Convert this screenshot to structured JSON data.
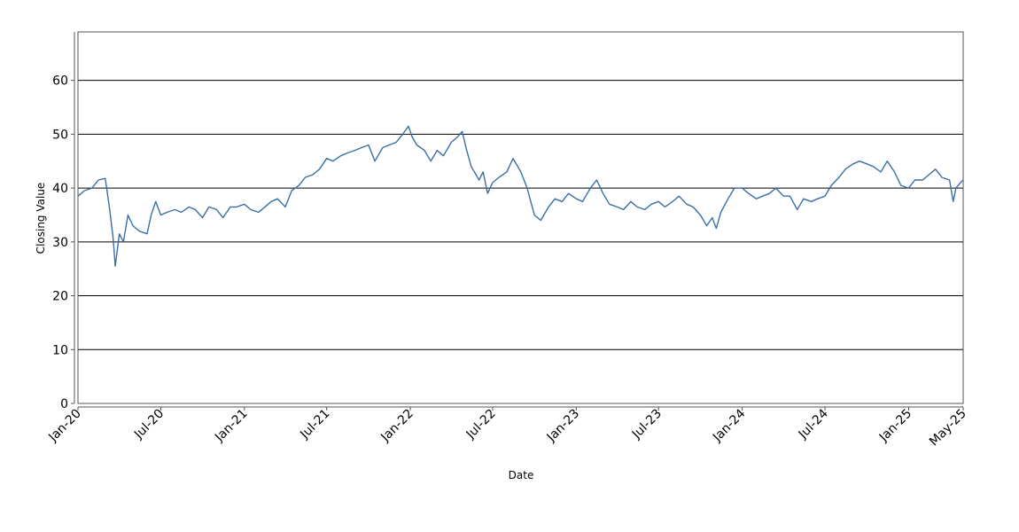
{
  "chart_data": {
    "type": "line",
    "title": "",
    "xlabel": "Date",
    "ylabel": "Closing Value",
    "ylim": [
      0,
      69
    ],
    "xlim": [
      "2020-01-01",
      "2025-05-01"
    ],
    "y_ticks": [
      0,
      10,
      20,
      30,
      40,
      50,
      60
    ],
    "x_ticks": [
      {
        "date": "2020-01-01",
        "label": "Jan-20"
      },
      {
        "date": "2020-07-01",
        "label": "Jul-20"
      },
      {
        "date": "2021-01-01",
        "label": "Jan-21"
      },
      {
        "date": "2021-07-01",
        "label": "Jul-21"
      },
      {
        "date": "2022-01-01",
        "label": "Jan-22"
      },
      {
        "date": "2022-07-01",
        "label": "Jul-22"
      },
      {
        "date": "2023-01-01",
        "label": "Jan-23"
      },
      {
        "date": "2023-07-01",
        "label": "Jul-23"
      },
      {
        "date": "2024-01-01",
        "label": "Jan-24"
      },
      {
        "date": "2024-07-01",
        "label": "Jul-24"
      },
      {
        "date": "2025-01-01",
        "label": "Jan-25"
      },
      {
        "date": "2025-05-01",
        "label": "May-25"
      }
    ],
    "grid": "horizontal",
    "line_color": "#3a6ea5",
    "series": [
      {
        "x": [
          "2020-01-01",
          "2020-01-15",
          "2020-02-01",
          "2020-02-15",
          "2020-03-01",
          "2020-03-10",
          "2020-03-18",
          "2020-03-23",
          "2020-04-01",
          "2020-04-10",
          "2020-04-20",
          "2020-05-01",
          "2020-05-15",
          "2020-06-01",
          "2020-06-10",
          "2020-06-20",
          "2020-07-01",
          "2020-07-15",
          "2020-08-01",
          "2020-08-15",
          "2020-09-01",
          "2020-09-15",
          "2020-10-01",
          "2020-10-15",
          "2020-11-01",
          "2020-11-15",
          "2020-12-01",
          "2020-12-15",
          "2021-01-01",
          "2021-01-15",
          "2021-02-01",
          "2021-02-15",
          "2021-03-01",
          "2021-03-15",
          "2021-04-01",
          "2021-04-15",
          "2021-05-01",
          "2021-05-15",
          "2021-06-01",
          "2021-06-15",
          "2021-07-01",
          "2021-07-15",
          "2021-08-01",
          "2021-08-15",
          "2021-09-01",
          "2021-09-15",
          "2021-10-01",
          "2021-10-15",
          "2021-11-01",
          "2021-11-15",
          "2021-12-01",
          "2021-12-15",
          "2021-12-28",
          "2022-01-05",
          "2022-01-15",
          "2022-02-01",
          "2022-02-15",
          "2022-03-01",
          "2022-03-15",
          "2022-04-01",
          "2022-04-15",
          "2022-04-25",
          "2022-05-05",
          "2022-05-15",
          "2022-06-01",
          "2022-06-10",
          "2022-06-20",
          "2022-07-01",
          "2022-07-15",
          "2022-08-01",
          "2022-08-15",
          "2022-09-01",
          "2022-09-15",
          "2022-10-01",
          "2022-10-15",
          "2022-11-01",
          "2022-11-15",
          "2022-12-01",
          "2022-12-15",
          "2023-01-01",
          "2023-01-15",
          "2023-02-01",
          "2023-02-15",
          "2023-03-01",
          "2023-03-15",
          "2023-04-01",
          "2023-04-15",
          "2023-05-01",
          "2023-05-15",
          "2023-06-01",
          "2023-06-15",
          "2023-07-01",
          "2023-07-15",
          "2023-08-01",
          "2023-08-15",
          "2023-09-01",
          "2023-09-15",
          "2023-10-01",
          "2023-10-15",
          "2023-10-27",
          "2023-11-05",
          "2023-11-15",
          "2023-12-01",
          "2023-12-15",
          "2024-01-01",
          "2024-01-15",
          "2024-02-01",
          "2024-02-15",
          "2024-03-01",
          "2024-03-15",
          "2024-04-01",
          "2024-04-15",
          "2024-05-01",
          "2024-05-15",
          "2024-06-01",
          "2024-06-15",
          "2024-07-01",
          "2024-07-15",
          "2024-08-01",
          "2024-08-15",
          "2024-09-01",
          "2024-09-15",
          "2024-10-01",
          "2024-10-15",
          "2024-11-01",
          "2024-11-15",
          "2024-12-01",
          "2024-12-15",
          "2025-01-01",
          "2025-01-15",
          "2025-02-01",
          "2025-02-15",
          "2025-03-01",
          "2025-03-15",
          "2025-04-01",
          "2025-04-09",
          "2025-04-15",
          "2025-04-25",
          "2025-05-01"
        ],
        "y": [
          38.5,
          39.5,
          40.0,
          41.5,
          41.8,
          36.5,
          31.0,
          25.5,
          31.5,
          30.0,
          35.0,
          33.0,
          32.0,
          31.5,
          35.0,
          37.5,
          35.0,
          35.5,
          36.0,
          35.5,
          36.5,
          36.0,
          34.5,
          36.5,
          36.0,
          34.5,
          36.5,
          36.5,
          37.0,
          36.0,
          35.5,
          36.5,
          37.5,
          38.0,
          36.5,
          39.5,
          40.5,
          42.0,
          42.5,
          43.5,
          45.5,
          45.0,
          46.0,
          46.5,
          47.0,
          47.5,
          48.0,
          45.0,
          47.5,
          48.0,
          48.5,
          50.0,
          51.5,
          49.5,
          48.0,
          47.0,
          45.0,
          47.0,
          46.0,
          48.5,
          49.5,
          50.5,
          47.0,
          44.0,
          41.5,
          43.0,
          39.0,
          41.0,
          42.0,
          43.0,
          45.5,
          43.0,
          40.0,
          35.0,
          34.0,
          36.5,
          38.0,
          37.5,
          39.0,
          38.0,
          37.5,
          40.0,
          41.5,
          39.0,
          37.0,
          36.5,
          36.0,
          37.5,
          36.5,
          36.0,
          37.0,
          37.5,
          36.5,
          37.5,
          38.5,
          37.0,
          36.5,
          35.0,
          33.0,
          34.5,
          32.5,
          35.5,
          38.0,
          40.0,
          40.0,
          39.0,
          38.0,
          38.5,
          39.0,
          40.0,
          38.5,
          38.5,
          36.0,
          38.0,
          37.5,
          38.0,
          38.5,
          40.5,
          42.0,
          43.5,
          44.5,
          45.0,
          44.5,
          44.0,
          43.0,
          45.0,
          43.0,
          40.5,
          40.0,
          41.5,
          41.5,
          42.5,
          43.5,
          42.0,
          41.5,
          37.5,
          40.0,
          41.0,
          41.5
        ]
      }
    ]
  }
}
